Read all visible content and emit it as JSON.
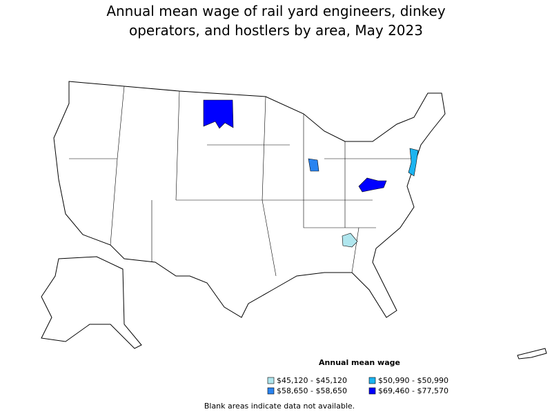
{
  "title": "Annual mean wage of rail yard engineers, dinkey operators, and hostlers by area, May 2023",
  "legend": {
    "title": "Annual mean wage",
    "items": [
      {
        "label": "$45,120 - $45,120",
        "color": "#b0e6ee"
      },
      {
        "label": "$50,990 - $50,990",
        "color": "#1cb4f0"
      },
      {
        "label": "$58,650 - $58,650",
        "color": "#2a84f0"
      },
      {
        "label": "$69,460 - $77,570",
        "color": "#0000ff"
      }
    ]
  },
  "note": "Blank areas indicate data not available."
}
